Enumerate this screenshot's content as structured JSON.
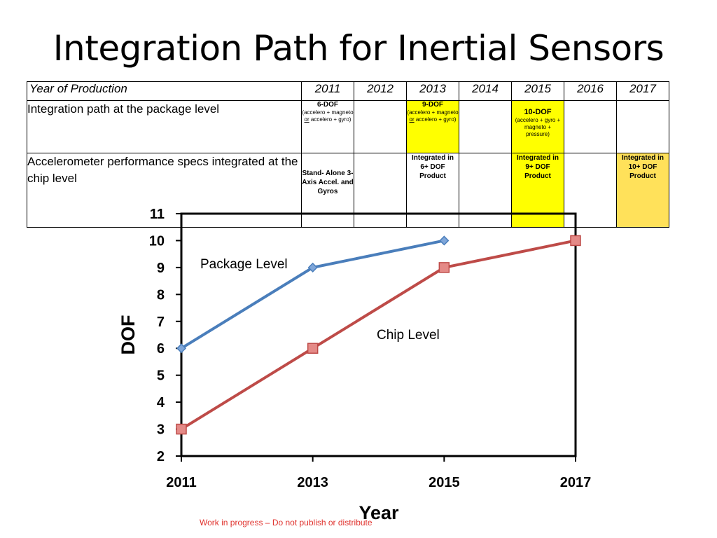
{
  "title": "Integration Path for Inertial Sensors",
  "table": {
    "header_label": "Year of Production",
    "years": [
      "2011",
      "2012",
      "2013",
      "2014",
      "2015",
      "2016",
      "2017"
    ],
    "row1": {
      "label": "Integration path at the package level",
      "c2011_title": "6-DOF",
      "c2011_sub_a": "(accelero + magneto ",
      "c2011_sub_or": "or",
      "c2011_sub_b": " accelero + gyro)",
      "c2013_title": "9-DOF",
      "c2013_sub_a": "(accelero + magneto ",
      "c2013_sub_or": "or",
      "c2013_sub_b": " accelero + gyro)",
      "c2015_title": "10-DOF",
      "c2015_sub": "(accelero + gyro + magneto + pressure)"
    },
    "row2": {
      "label": "Accelerometer performance specs integrated at the chip level",
      "c2011": "Stand- Alone 3-Axis Accel. and Gyros",
      "c2013": "Integrated in 6+ DOF Product",
      "c2015": "Integrated in 9+ DOF Product",
      "c2017": "Integrated in 10+ DOF Product"
    },
    "colors": {
      "yellow": "#ffff00",
      "highlight_2017": "#ffe15a",
      "red_text": "#e00000"
    }
  },
  "chart_data": {
    "type": "line",
    "x": [
      2011,
      2013,
      2015,
      2017
    ],
    "x_ticks": [
      "2011",
      "2013",
      "2015",
      "2017"
    ],
    "y_ticks": [
      "2",
      "3",
      "4",
      "5",
      "6",
      "7",
      "8",
      "9",
      "10",
      "11"
    ],
    "xlabel": "Year",
    "ylabel": "DOF",
    "xlim": [
      2011,
      2017
    ],
    "ylim": [
      2,
      11
    ],
    "grid": false,
    "series": [
      {
        "name": "Package Level",
        "x": [
          2011,
          2013,
          2015
        ],
        "values": [
          6,
          9,
          10
        ],
        "color": "#4a7ebb",
        "marker": "diamond"
      },
      {
        "name": "Chip Level",
        "x": [
          2011,
          2013,
          2015,
          2017
        ],
        "values": [
          3,
          6,
          9,
          10
        ],
        "color": "#be4b48",
        "marker": "square"
      }
    ]
  },
  "footer": "Work in progress – Do not publish or distribute"
}
